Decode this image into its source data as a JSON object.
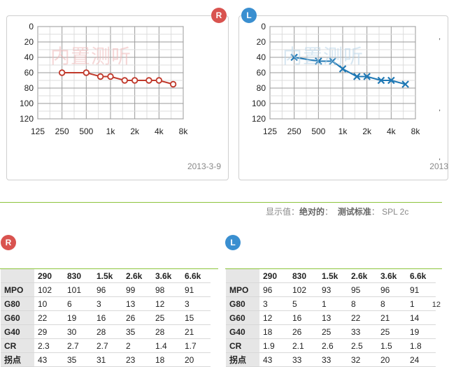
{
  "colors": {
    "right": "#c0392b",
    "left": "#1f78b4",
    "badge_r": "#d9534f",
    "badge_l": "#3a8fd0",
    "accent_line": "#8cc43c"
  },
  "right_ear": {
    "badge": "R",
    "watermark": "内置测听",
    "date": "2013-3-9",
    "chart_data": {
      "type": "line",
      "x": [
        "250",
        "500",
        "750",
        "1k",
        "1.5k",
        "2k",
        "3k",
        "4k",
        "6k"
      ],
      "values": [
        60,
        60,
        65,
        65,
        70,
        70,
        70,
        70,
        75
      ],
      "marker": "circle",
      "x_ticks": [
        "125",
        "250",
        "500",
        "1k",
        "2k",
        "4k",
        "8k"
      ],
      "y_ticks": [
        "0",
        "20",
        "40",
        "60",
        "80",
        "100",
        "120"
      ],
      "ylim": [
        0,
        120
      ],
      "y_inverted": true,
      "grid": true
    }
  },
  "left_ear": {
    "badge": "L",
    "watermark": "内置测听",
    "date": "2013",
    "chart_data": {
      "type": "line",
      "x": [
        "250",
        "500",
        "750",
        "1k",
        "1.5k",
        "2k",
        "3k",
        "4k",
        "6k"
      ],
      "values": [
        40,
        45,
        45,
        55,
        65,
        65,
        70,
        70,
        75
      ],
      "marker": "x",
      "x_ticks": [
        "125",
        "250",
        "500",
        "1k",
        "2k",
        "4k",
        "8k"
      ],
      "y_ticks": [
        "0",
        "20",
        "40",
        "60",
        "80",
        "100",
        "120"
      ],
      "ylim": [
        0,
        120
      ],
      "y_inverted": true,
      "grid": true
    }
  },
  "info": {
    "display_label": "显示值：",
    "display_value": "绝对的",
    "standard_label": "测试标准",
    "standard_value": "SPL 2c"
  },
  "tables": {
    "right": {
      "badge": "R",
      "headers": [
        "290",
        "830",
        "1.5k",
        "2.6k",
        "3.6k",
        "6.6k"
      ],
      "rows": [
        {
          "label": "MPO",
          "values": [
            "102",
            "101",
            "96",
            "99",
            "98",
            "91"
          ]
        },
        {
          "label": "G80",
          "values": [
            "10",
            "6",
            "3",
            "13",
            "12",
            "3"
          ]
        },
        {
          "label": "G60",
          "values": [
            "22",
            "19",
            "16",
            "26",
            "25",
            "15"
          ]
        },
        {
          "label": "G40",
          "values": [
            "29",
            "30",
            "28",
            "35",
            "28",
            "21"
          ]
        },
        {
          "label": "CR",
          "values": [
            "2.3",
            "2.7",
            "2.7",
            "2",
            "1.4",
            "1.7"
          ]
        },
        {
          "label": "拐点",
          "values": [
            "43",
            "35",
            "31",
            "23",
            "18",
            "20"
          ]
        }
      ]
    },
    "left": {
      "badge": "L",
      "headers": [
        "290",
        "830",
        "1.5k",
        "2.6k",
        "3.6k",
        "6.6k"
      ],
      "rows": [
        {
          "label": "MPO",
          "values": [
            "96",
            "102",
            "93",
            "95",
            "96",
            "91"
          ]
        },
        {
          "label": "G80",
          "values": [
            "3",
            "5",
            "1",
            "8",
            "8",
            "1"
          ]
        },
        {
          "label": "G60",
          "values": [
            "12",
            "16",
            "13",
            "22",
            "21",
            "14"
          ]
        },
        {
          "label": "G40",
          "values": [
            "18",
            "26",
            "25",
            "33",
            "25",
            "19"
          ]
        },
        {
          "label": "CR",
          "values": [
            "1.9",
            "2.1",
            "2.6",
            "2.5",
            "1.5",
            "1.8"
          ]
        },
        {
          "label": "拐点",
          "values": [
            "43",
            "33",
            "33",
            "32",
            "20",
            "24"
          ]
        }
      ]
    }
  },
  "side_label": "12"
}
